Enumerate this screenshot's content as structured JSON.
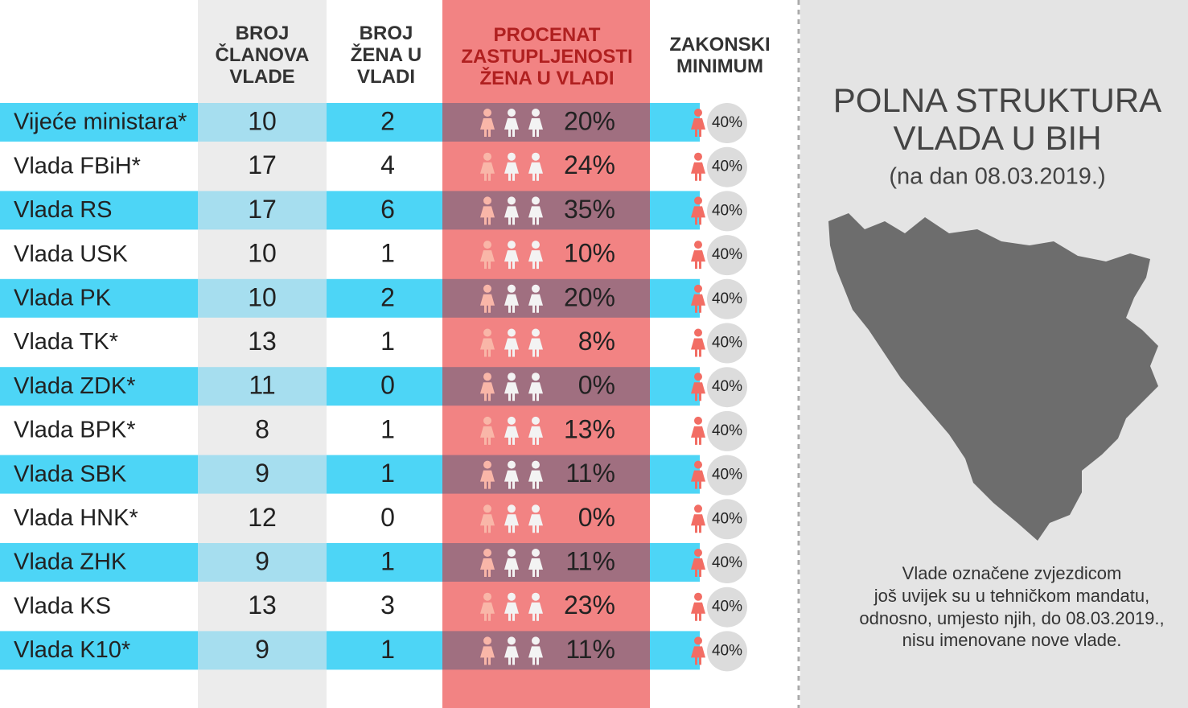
{
  "header": {
    "columns": [
      "BROJ ČLANOVA VLADE",
      "BROJ ŽENA U VLADI",
      "PROCENAT ZASTUPLJENOSTI ŽENA U VLADI",
      "ZAKONSKI MINIMUM"
    ]
  },
  "table": {
    "rows": [
      [
        "Vijeće ministara*",
        "10",
        "2",
        "20%"
      ],
      [
        "Vlada FBiH*",
        "17",
        "4",
        "24%"
      ],
      [
        "Vlada RS",
        "17",
        "6",
        "35%"
      ],
      [
        "Vlada USK",
        "10",
        "1",
        "10%"
      ],
      [
        "Vlada PK",
        "10",
        "2",
        "20%"
      ],
      [
        "Vlada TK*",
        "13",
        "1",
        "8%"
      ],
      [
        "Vlada ZDK*",
        "11",
        "0",
        "0%"
      ],
      [
        "Vlada BPK*",
        "8",
        "1",
        "13%"
      ],
      [
        "Vlada SBK",
        "9",
        "1",
        "11%"
      ],
      [
        "Vlada HNK*",
        "12",
        "0",
        "0%"
      ],
      [
        "Vlada ZHK",
        "9",
        "1",
        "11%"
      ],
      [
        "Vlada KS",
        "13",
        "3",
        "23%"
      ],
      [
        "Vlada K10*",
        "9",
        "1",
        "11%"
      ]
    ],
    "minimum": "40%"
  },
  "panel": {
    "title_lines": [
      "POLNA STRUKTURA",
      "VLADA U BIH"
    ],
    "subtitle": "(na dan 08.03.2019.)",
    "note_lines": [
      "Vlade označene zvjezdicom",
      "još uvijek su u tehničkom mandatu,",
      "odnosno, umjesto njih, do 08.03.2019.,",
      "nisu imenovane nove vlade."
    ]
  }
}
